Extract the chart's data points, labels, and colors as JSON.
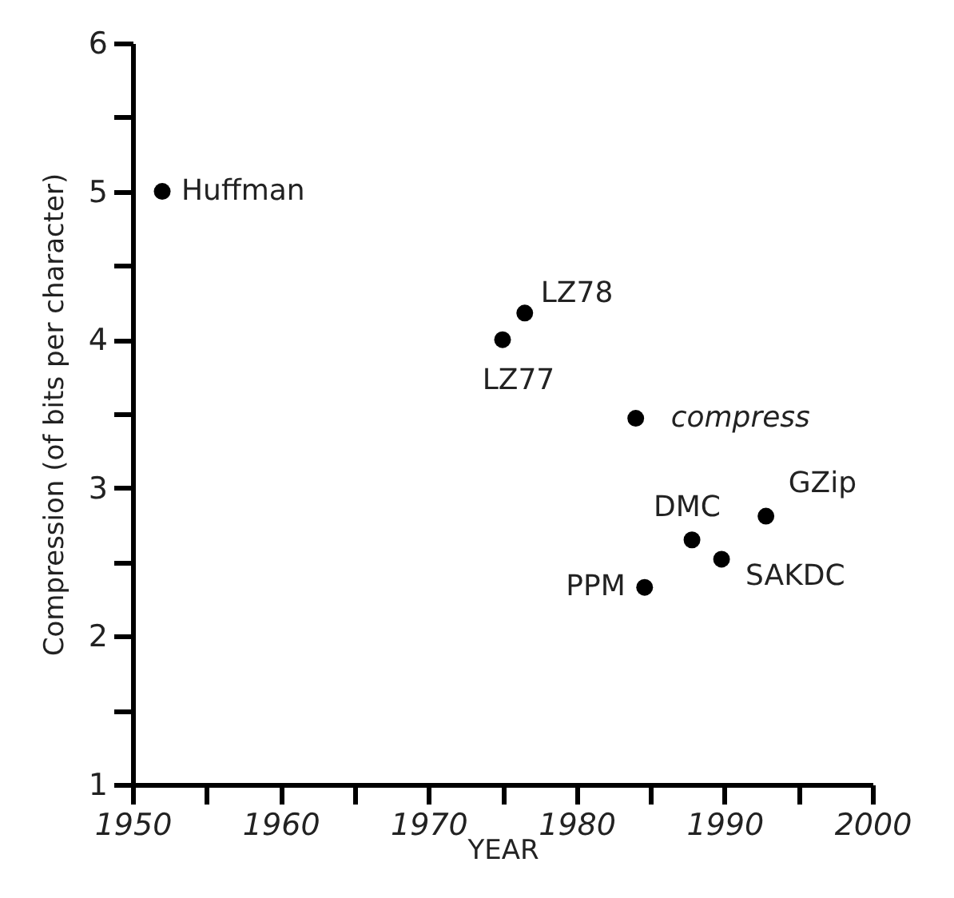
{
  "chart_data": {
    "type": "scatter",
    "xlabel": "YEAR",
    "ylabel": "Compression (of bits per character)",
    "x": [
      1952,
      1976.5,
      1975,
      1984,
      1992.8,
      1987.8,
      1989.8,
      1984.6
    ],
    "values": [
      5.0,
      4.18,
      4.0,
      3.47,
      2.81,
      2.65,
      2.52,
      2.33
    ],
    "color": "#000000",
    "marker": "circle",
    "xlim": [
      1950,
      2000
    ],
    "ylim": [
      1,
      6
    ],
    "xticks": [
      1950,
      {
        "value": 1955,
        "label": null
      },
      1960,
      {
        "value": 1965,
        "label": null
      },
      1970,
      {
        "value": 1975,
        "label": null
      },
      1980,
      {
        "value": 1985,
        "label": null
      },
      1990,
      {
        "value": 1995,
        "label": null
      },
      2000
    ],
    "yticks": [
      1,
      {
        "value": 1.5,
        "label": null
      },
      2,
      {
        "value": 2.5,
        "label": null
      },
      3,
      {
        "value": 3.5,
        "label": null
      },
      4,
      {
        "value": 4.5,
        "label": null
      },
      5,
      {
        "value": 5.5,
        "label": null
      },
      6
    ],
    "grid": false,
    "annotations": [
      {
        "text": "Huffman",
        "x": 1952,
        "y": 5.0
      },
      {
        "text": "LZ78",
        "x": 1976.5,
        "y": 4.18
      },
      {
        "text": "LZ77",
        "x": 1975,
        "y": 4.0
      },
      {
        "text": "compress",
        "x": 1984,
        "y": 3.47
      },
      {
        "text": "GZip",
        "x": 1992.8,
        "y": 2.81
      },
      {
        "text": "DMC",
        "x": 1987.8,
        "y": 2.65
      },
      {
        "text": "SAKDC",
        "x": 1989.8,
        "y": 2.52
      },
      {
        "text": "PPM",
        "x": 1984.6,
        "y": 2.33
      }
    ]
  }
}
